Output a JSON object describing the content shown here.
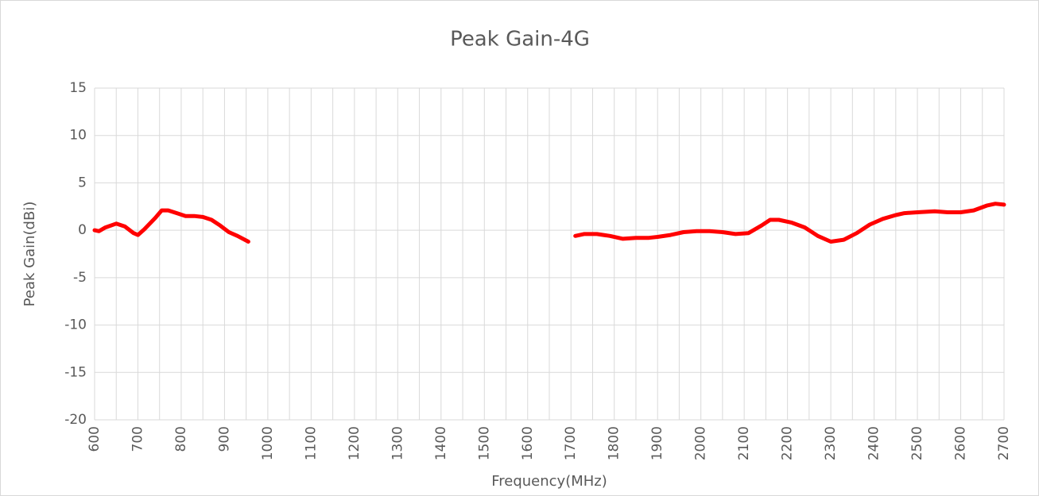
{
  "chart_data": {
    "type": "line",
    "title": "Peak Gain-4G",
    "xlabel": "Frequency(MHz)",
    "ylabel": "Peak Gain(dBi)",
    "x": [
      600,
      610,
      625,
      650,
      670,
      690,
      700,
      715,
      740,
      755,
      770,
      790,
      810,
      830,
      850,
      870,
      890,
      910,
      930,
      955,
      null,
      1710,
      1730,
      1760,
      1790,
      1820,
      1850,
      1880,
      1900,
      1930,
      1960,
      1990,
      2020,
      2050,
      2080,
      2110,
      2140,
      2160,
      2180,
      2210,
      2240,
      2270,
      2300,
      2330,
      2360,
      2390,
      2420,
      2450,
      2470,
      2500,
      2540,
      2570,
      2600,
      2630,
      2660,
      2680,
      2700
    ],
    "series": [
      {
        "color": "#ff0000",
        "values": [
          0,
          -0.1,
          0.3,
          0.7,
          0.4,
          -0.3,
          -0.5,
          0.1,
          1.3,
          2.1,
          2.1,
          1.8,
          1.5,
          1.5,
          1.4,
          1.1,
          0.5,
          -0.2,
          -0.6,
          -1.2,
          null,
          -0.6,
          -0.4,
          -0.4,
          -0.6,
          -0.9,
          -0.8,
          -0.8,
          -0.7,
          -0.5,
          -0.2,
          -0.1,
          -0.1,
          -0.2,
          -0.4,
          -0.3,
          0.5,
          1.1,
          1.1,
          0.8,
          0.3,
          -0.6,
          -1.2,
          -1.0,
          -0.3,
          0.6,
          1.2,
          1.6,
          1.8,
          1.9,
          2.0,
          1.9,
          1.9,
          2.1,
          2.6,
          2.8,
          2.7
        ]
      }
    ],
    "xlim": [
      600,
      2700
    ],
    "xticks": [
      600,
      700,
      800,
      900,
      1000,
      1100,
      1200,
      1300,
      1400,
      1500,
      1600,
      1700,
      1800,
      1900,
      2000,
      2100,
      2200,
      2300,
      2400,
      2500,
      2600,
      2700
    ],
    "xminorticks": [
      650,
      750,
      850,
      950,
      1050,
      1150,
      1250,
      1350,
      1450,
      1550,
      1650,
      1750,
      1850,
      1950,
      2050,
      2150,
      2250,
      2350,
      2450,
      2550,
      2650
    ],
    "ylim": [
      -20,
      15
    ],
    "yticks": [
      -20,
      -15,
      -10,
      -5,
      0,
      5,
      10,
      15
    ],
    "grid": true
  }
}
